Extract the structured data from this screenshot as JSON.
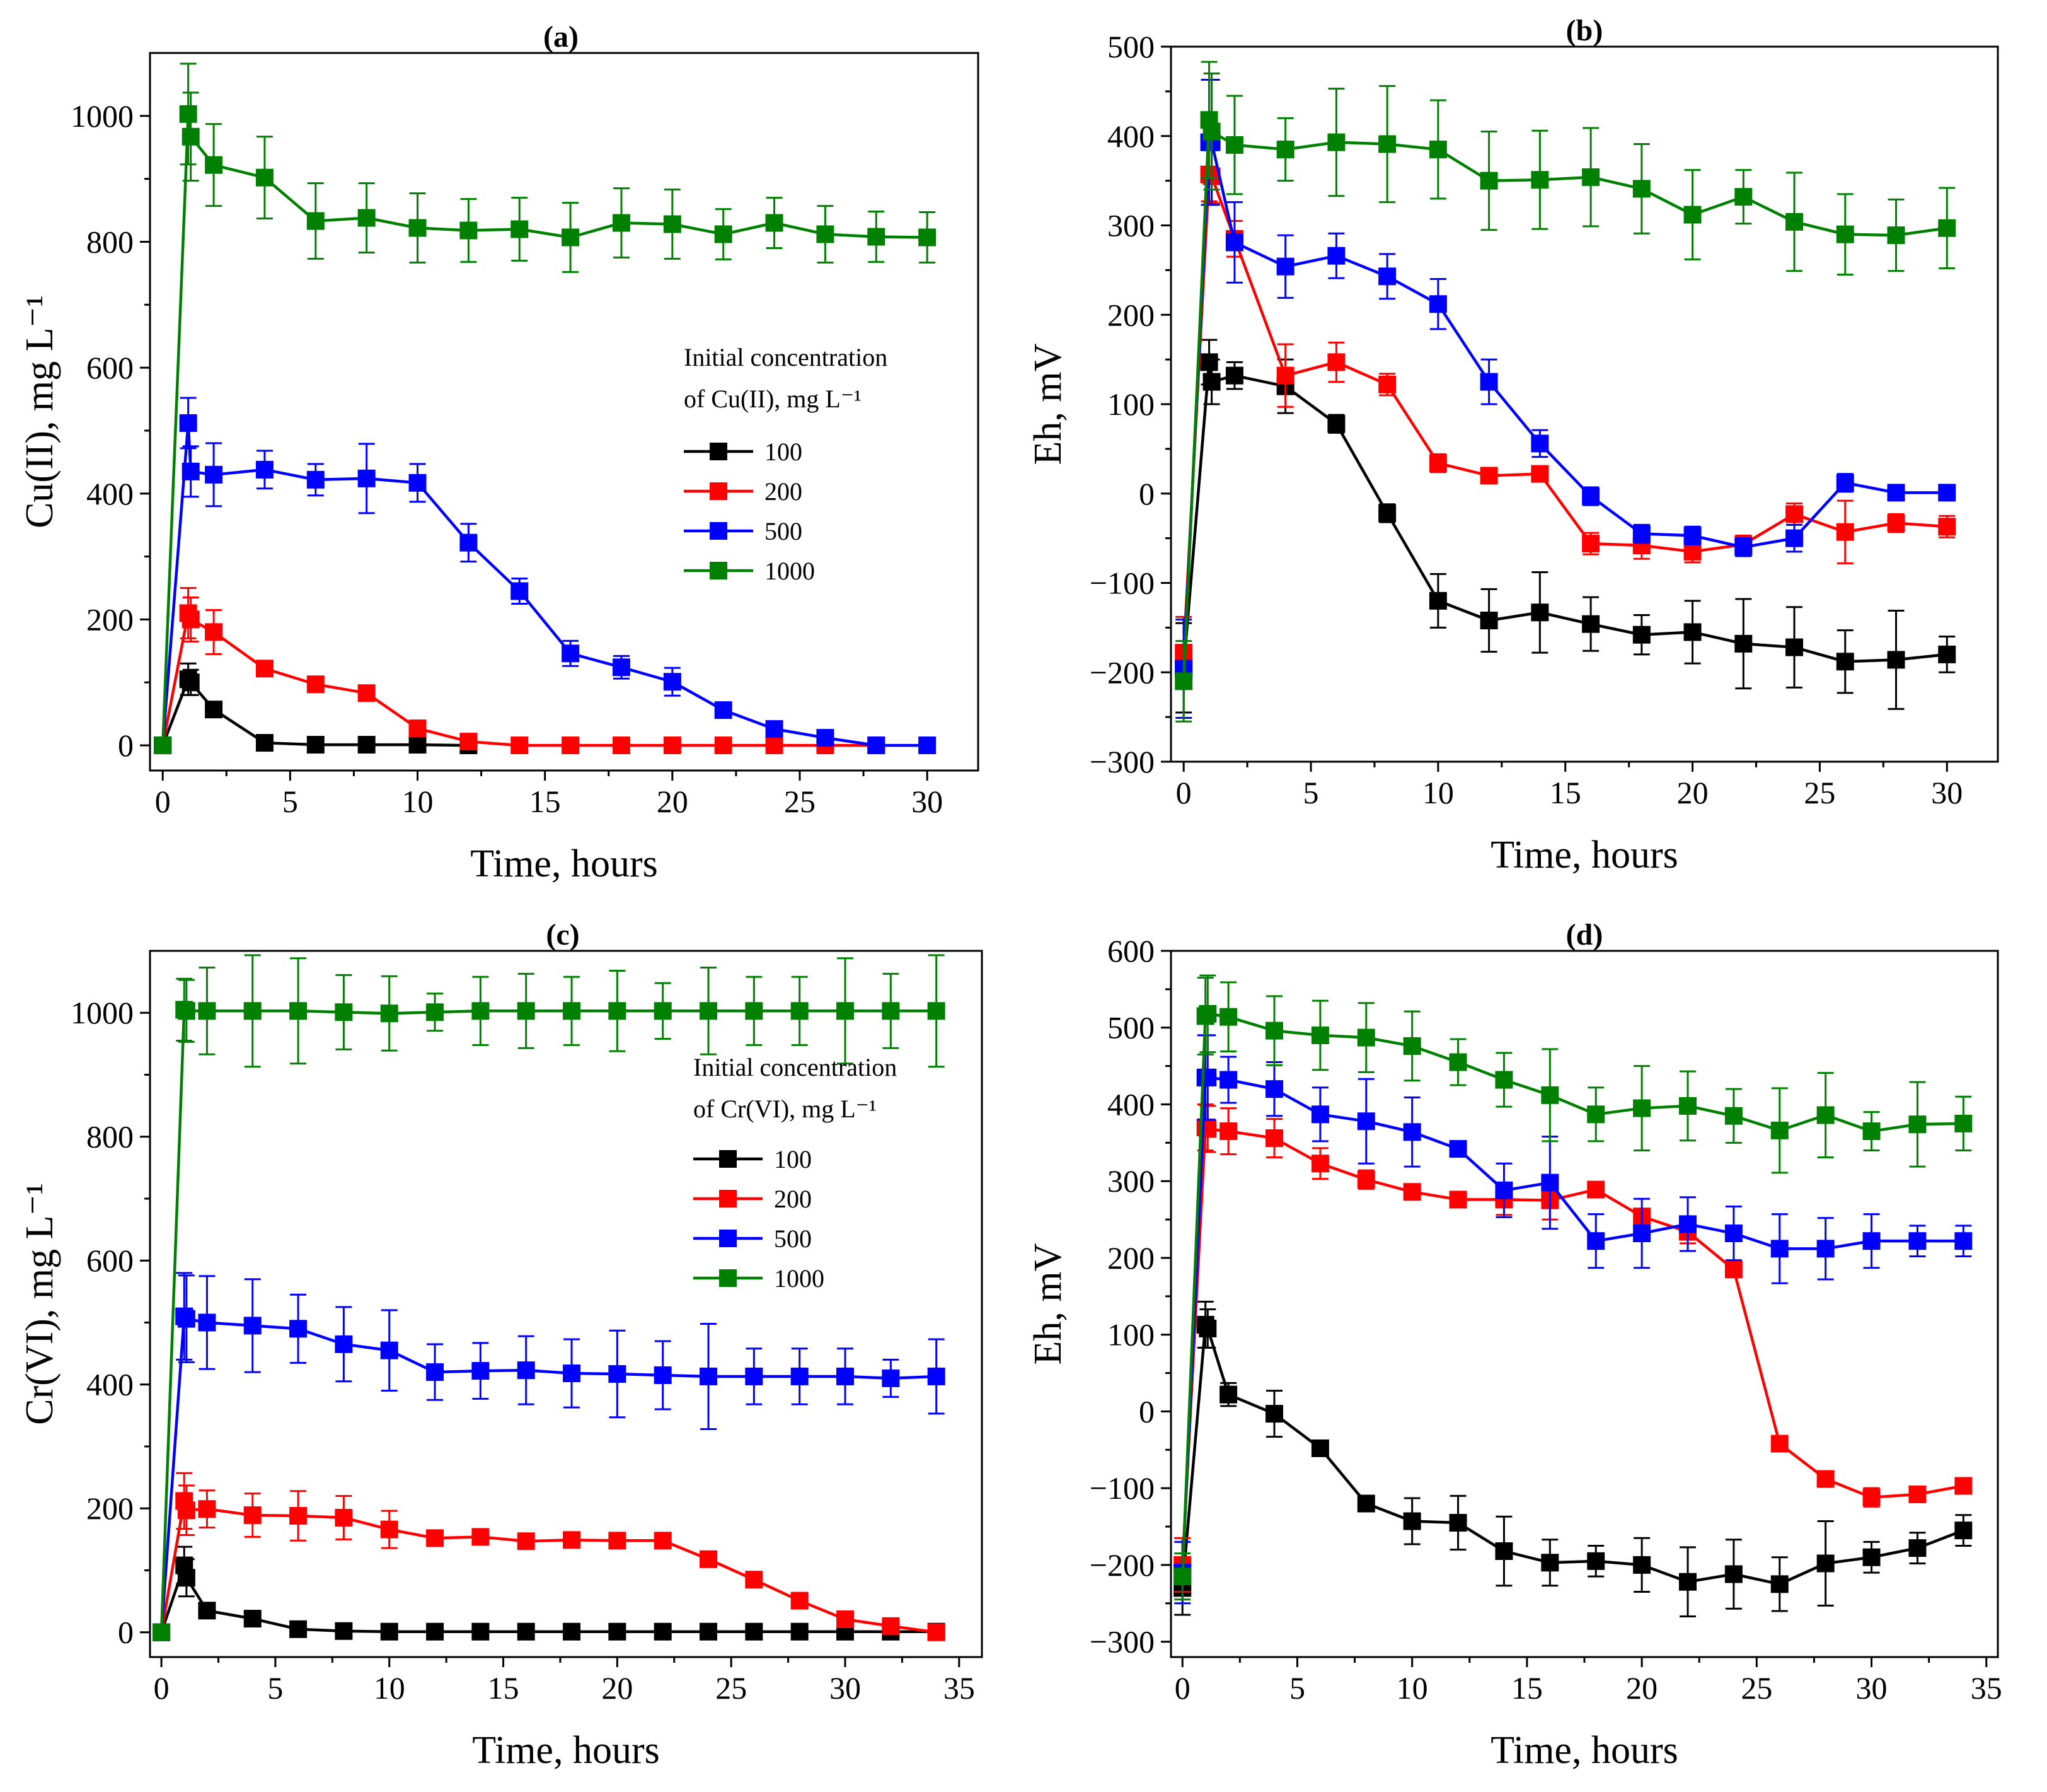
{
  "chart_data": [
    {
      "panel": "(a)",
      "type": "line",
      "xlabel": "Time, hours",
      "ylabel": "Cu(II), mg L⁻¹",
      "xlim": [
        -0.5,
        32
      ],
      "ylim": [
        -40,
        1100
      ],
      "xticks": [
        0,
        5,
        10,
        15,
        20,
        25,
        30
      ],
      "yticks": [
        0,
        200,
        400,
        600,
        800,
        1000
      ],
      "legend": {
        "title_line1": "Initial concentration",
        "title_line2": "of Cu(II), mg L⁻¹"
      },
      "series": [
        {
          "name": "100",
          "color": "#000000",
          "x": [
            0,
            1,
            1.1,
            2,
            4,
            6,
            8,
            10,
            12
          ],
          "y": [
            0,
            105,
            100,
            57,
            4,
            1,
            1,
            1,
            0
          ],
          "err": [
            0,
            25,
            20,
            8,
            4,
            3,
            3,
            3,
            3
          ]
        },
        {
          "name": "200",
          "color": "#ff0000",
          "x": [
            0,
            1,
            1.1,
            2,
            4,
            6,
            8,
            10,
            12,
            14,
            16,
            18,
            20,
            22,
            24,
            26,
            28
          ],
          "y": [
            0,
            210,
            200,
            180,
            122,
            97,
            83,
            27,
            6,
            0,
            0,
            0,
            0,
            0,
            0,
            0,
            0
          ],
          "err": [
            0,
            40,
            35,
            35,
            10,
            8,
            8,
            5,
            3,
            3,
            3,
            3,
            3,
            3,
            3,
            3,
            3
          ]
        },
        {
          "name": "500",
          "color": "#0000ff",
          "x": [
            0,
            1,
            1.1,
            2,
            4,
            6,
            8,
            10,
            12,
            14,
            16,
            18,
            20,
            22,
            24,
            26,
            28,
            30
          ],
          "y": [
            0,
            512,
            435,
            430,
            438,
            422,
            424,
            417,
            322,
            245,
            146,
            124,
            101,
            56,
            26,
            12,
            0,
            0
          ],
          "err": [
            0,
            40,
            40,
            50,
            30,
            25,
            55,
            30,
            30,
            20,
            20,
            18,
            22,
            10,
            8,
            6,
            3,
            3
          ]
        },
        {
          "name": "1000",
          "color": "#008000",
          "x": [
            0,
            1,
            1.1,
            2,
            4,
            6,
            8,
            10,
            12,
            14,
            16,
            18,
            20,
            22,
            24,
            26,
            28,
            30
          ],
          "y": [
            0,
            1003,
            967,
            922,
            902,
            833,
            838,
            822,
            818,
            820,
            807,
            830,
            828,
            812,
            830,
            812,
            808,
            807
          ],
          "err": [
            0,
            80,
            70,
            65,
            65,
            60,
            55,
            55,
            50,
            50,
            55,
            55,
            55,
            40,
            40,
            45,
            40,
            40
          ]
        }
      ]
    },
    {
      "panel": "(b)",
      "type": "line",
      "xlabel": "Time, hours",
      "ylabel": "Eh, mV",
      "xlim": [
        -0.5,
        32
      ],
      "ylim": [
        -300,
        500
      ],
      "xticks": [
        0,
        5,
        10,
        15,
        20,
        25,
        30
      ],
      "yticks": [
        -300,
        -200,
        -100,
        0,
        100,
        200,
        300,
        400,
        500
      ],
      "series": [
        {
          "name": "100",
          "color": "#000000",
          "x": [
            0,
            1,
            1.1,
            2,
            4,
            6,
            8,
            10,
            12,
            14,
            16,
            18,
            20,
            22,
            24,
            26,
            28,
            30
          ],
          "y": [
            -195,
            147,
            125,
            132,
            120,
            78,
            -22,
            -120,
            -142,
            -133,
            -146,
            -158,
            -155,
            -168,
            -172,
            -188,
            -186,
            -180
          ],
          "err": [
            50,
            25,
            25,
            15,
            30,
            10,
            10,
            30,
            35,
            45,
            30,
            22,
            35,
            50,
            45,
            35,
            55,
            20
          ]
        },
        {
          "name": "200",
          "color": "#ff0000",
          "x": [
            0,
            1,
            1.1,
            2,
            4,
            6,
            8,
            10,
            12,
            14,
            16,
            18,
            20,
            22,
            24,
            26,
            28,
            30
          ],
          "y": [
            -178,
            357,
            355,
            285,
            132,
            147,
            122,
            34,
            20,
            22,
            -56,
            -58,
            -65,
            -57,
            -23,
            -43,
            -33,
            -37
          ],
          "err": [
            40,
            30,
            30,
            20,
            35,
            22,
            12,
            10,
            8,
            8,
            12,
            15,
            12,
            10,
            12,
            35,
            10,
            12
          ]
        },
        {
          "name": "500",
          "color": "#0000ff",
          "x": [
            0,
            1,
            1.1,
            2,
            4,
            6,
            8,
            10,
            12,
            14,
            16,
            18,
            20,
            22,
            24,
            26,
            28,
            30
          ],
          "y": [
            -196,
            393,
            393,
            281,
            254,
            266,
            243,
            212,
            125,
            56,
            -3,
            -45,
            -47,
            -60,
            -50,
            12,
            1,
            1
          ],
          "err": [
            55,
            70,
            70,
            45,
            35,
            25,
            25,
            28,
            25,
            15,
            10,
            10,
            10,
            10,
            15,
            10,
            8,
            8
          ]
        },
        {
          "name": "1000",
          "color": "#008000",
          "x": [
            0,
            1,
            1.1,
            2,
            4,
            6,
            8,
            10,
            12,
            14,
            16,
            18,
            20,
            22,
            24,
            26,
            28,
            30
          ],
          "y": [
            -210,
            418,
            405,
            390,
            385,
            393,
            391,
            385,
            350,
            351,
            354,
            341,
            312,
            332,
            304,
            290,
            289,
            297
          ],
          "err": [
            45,
            65,
            65,
            55,
            35,
            60,
            65,
            55,
            55,
            55,
            55,
            50,
            50,
            30,
            55,
            45,
            40,
            45
          ]
        }
      ]
    },
    {
      "panel": "(c)",
      "type": "line",
      "xlabel": "Time, hours",
      "ylabel": "Cr(VI), mg L⁻¹",
      "xlim": [
        -0.5,
        36
      ],
      "ylim": [
        -40,
        1100
      ],
      "xticks": [
        0,
        5,
        10,
        15,
        20,
        25,
        30,
        35
      ],
      "yticks": [
        0,
        200,
        400,
        600,
        800,
        1000
      ],
      "legend": {
        "title_line1": "Initial concentration",
        "title_line2": "of Cr(VI), mg L⁻¹"
      },
      "series": [
        {
          "name": "100",
          "color": "#000000",
          "x": [
            0,
            1,
            1.1,
            2,
            4,
            6,
            8,
            10,
            12,
            14,
            16,
            18,
            20,
            22,
            24,
            26,
            28,
            30,
            32,
            34
          ],
          "y": [
            0,
            108,
            88,
            35,
            22,
            5,
            2,
            1,
            1,
            1,
            1,
            1,
            1,
            1,
            1,
            1,
            1,
            1,
            1,
            1
          ],
          "err": [
            0,
            30,
            30,
            8,
            6,
            4,
            3,
            3,
            3,
            3,
            3,
            3,
            3,
            3,
            3,
            3,
            3,
            3,
            3,
            3
          ]
        },
        {
          "name": "200",
          "color": "#ff0000",
          "x": [
            0,
            1,
            1.1,
            2,
            4,
            6,
            8,
            10,
            12,
            14,
            16,
            18,
            20,
            22,
            24,
            26,
            28,
            30,
            32,
            34
          ],
          "y": [
            0,
            212,
            197,
            199,
            189,
            188,
            185,
            166,
            152,
            154,
            147,
            149,
            148,
            148,
            118,
            85,
            51,
            21,
            10,
            0
          ],
          "err": [
            0,
            45,
            40,
            30,
            35,
            40,
            35,
            30,
            10,
            10,
            10,
            10,
            12,
            10,
            8,
            8,
            6,
            5,
            4,
            3
          ]
        },
        {
          "name": "500",
          "color": "#0000ff",
          "x": [
            0,
            1,
            1.1,
            2,
            4,
            6,
            8,
            10,
            12,
            14,
            16,
            18,
            20,
            22,
            24,
            26,
            28,
            30,
            32,
            34
          ],
          "y": [
            0,
            510,
            506,
            500,
            495,
            490,
            465,
            455,
            420,
            422,
            423,
            418,
            417,
            415,
            413,
            413,
            413,
            413,
            410,
            413
          ],
          "err": [
            0,
            70,
            70,
            75,
            75,
            55,
            60,
            65,
            45,
            45,
            55,
            55,
            70,
            55,
            85,
            45,
            45,
            45,
            30,
            60
          ]
        },
        {
          "name": "1000",
          "color": "#008000",
          "x": [
            0,
            1,
            1.1,
            2,
            4,
            6,
            8,
            10,
            12,
            14,
            16,
            18,
            20,
            22,
            24,
            26,
            28,
            30,
            32,
            34
          ],
          "y": [
            0,
            1005,
            1003,
            1003,
            1003,
            1003,
            1001,
            999,
            1001,
            1003,
            1003,
            1003,
            1003,
            1003,
            1003,
            1003,
            1003,
            1003,
            1003,
            1003
          ],
          "err": [
            0,
            50,
            50,
            70,
            90,
            85,
            60,
            60,
            30,
            55,
            60,
            55,
            65,
            45,
            70,
            55,
            55,
            85,
            60,
            90
          ]
        }
      ]
    },
    {
      "panel": "(d)",
      "type": "line",
      "xlabel": "Time, hours",
      "ylabel": "Eh, mV",
      "xlim": [
        -0.5,
        35.5
      ],
      "ylim": [
        -320,
        600
      ],
      "xticks": [
        0,
        5,
        10,
        15,
        20,
        25,
        30,
        35
      ],
      "yticks": [
        -300,
        -200,
        -100,
        0,
        100,
        200,
        300,
        400,
        500,
        600
      ],
      "series": [
        {
          "name": "100",
          "color": "#000000",
          "x": [
            0,
            1,
            1.1,
            2,
            4,
            6,
            8,
            10,
            12,
            14,
            16,
            18,
            20,
            22,
            24,
            26,
            28,
            30,
            32,
            34
          ],
          "y": [
            -230,
            113,
            108,
            22,
            -3,
            -48,
            -120,
            -143,
            -145,
            -182,
            -197,
            -195,
            -200,
            -222,
            -212,
            -225,
            -198,
            -190,
            -178,
            -155
          ],
          "err": [
            35,
            30,
            25,
            15,
            30,
            8,
            8,
            30,
            35,
            45,
            30,
            20,
            35,
            45,
            45,
            35,
            55,
            20,
            20,
            20
          ]
        },
        {
          "name": "200",
          "color": "#ff0000",
          "x": [
            0,
            1,
            1.1,
            2,
            4,
            6,
            8,
            10,
            12,
            14,
            16,
            18,
            20,
            22,
            24,
            26,
            28,
            30,
            32,
            34
          ],
          "y": [
            -200,
            370,
            368,
            365,
            356,
            323,
            302,
            286,
            276,
            276,
            275,
            289,
            254,
            234,
            185,
            -42,
            -88,
            -112,
            -108,
            -97
          ],
          "err": [
            35,
            30,
            30,
            30,
            25,
            20,
            12,
            10,
            10,
            20,
            25,
            10,
            10,
            15,
            8,
            8,
            8,
            12,
            10,
            8
          ]
        },
        {
          "name": "500",
          "color": "#0000ff",
          "x": [
            0,
            1,
            1.1,
            2,
            4,
            6,
            8,
            10,
            12,
            14,
            16,
            18,
            20,
            22,
            24,
            26,
            28,
            30,
            32,
            34
          ],
          "y": [
            -210,
            435,
            435,
            432,
            420,
            387,
            378,
            364,
            342,
            288,
            298,
            222,
            232,
            244,
            232,
            212,
            212,
            222,
            222,
            222
          ],
          "err": [
            40,
            55,
            55,
            30,
            35,
            35,
            55,
            45,
            10,
            35,
            60,
            35,
            45,
            35,
            35,
            45,
            40,
            35,
            20,
            20
          ]
        },
        {
          "name": "1000",
          "color": "#008000",
          "x": [
            0,
            1,
            1.1,
            2,
            4,
            6,
            8,
            10,
            12,
            14,
            16,
            18,
            20,
            22,
            24,
            26,
            28,
            30,
            32,
            34
          ],
          "y": [
            -215,
            515,
            518,
            514,
            496,
            490,
            487,
            476,
            455,
            432,
            412,
            387,
            395,
            398,
            385,
            366,
            386,
            365,
            374,
            375
          ],
          "err": [
            30,
            50,
            50,
            45,
            45,
            45,
            45,
            45,
            30,
            35,
            60,
            35,
            55,
            45,
            35,
            55,
            55,
            25,
            55,
            35
          ]
        }
      ]
    }
  ]
}
